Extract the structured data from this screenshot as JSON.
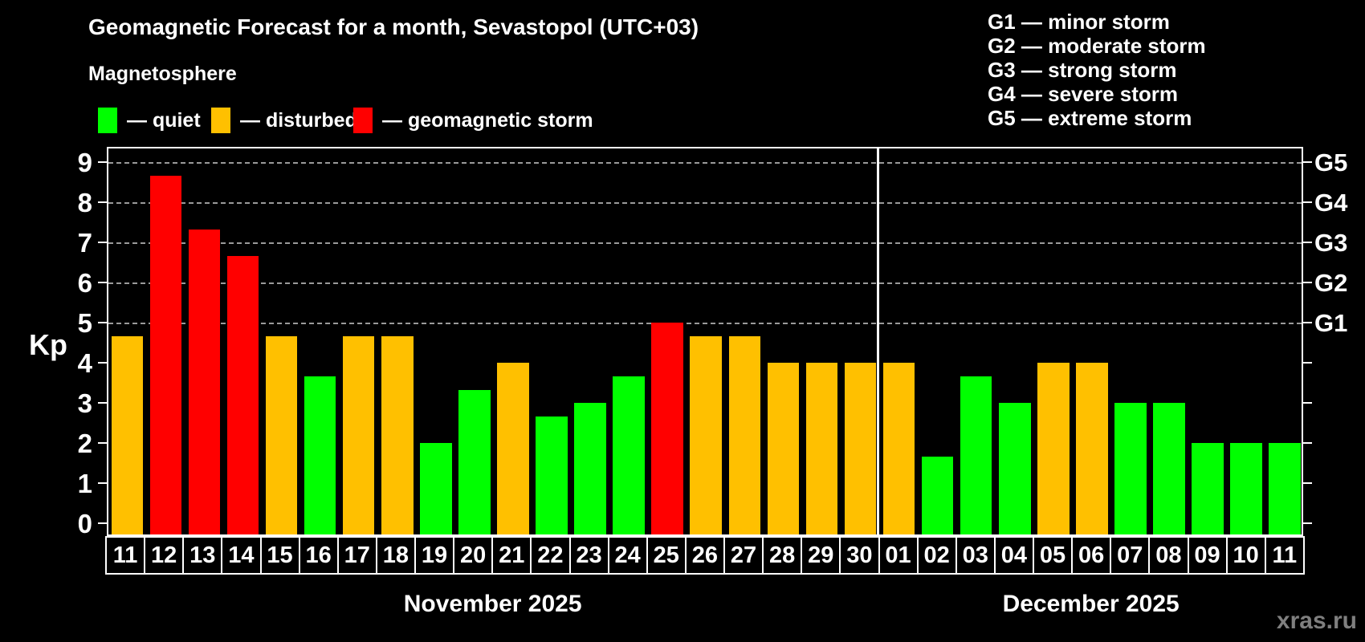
{
  "header": {
    "title": "Geomagnetic Forecast for a month, Sevastopol (UTC+03)",
    "subtitle": "Magnetosphere"
  },
  "legend": {
    "items": [
      {
        "key": "quiet",
        "label": "— quiet",
        "color": "#00ff00"
      },
      {
        "key": "disturbed",
        "label": "— disturbed",
        "color": "#ffc000"
      },
      {
        "key": "storm",
        "label": "— geomagnetic storm",
        "color": "#ff0000"
      }
    ]
  },
  "g_scale_legend": {
    "lines": [
      "G1 — minor storm",
      "G2 — moderate storm",
      "G3 — strong storm",
      "G4 — severe storm",
      "G5 — extreme storm"
    ]
  },
  "chart_data": {
    "type": "bar",
    "title": "Geomagnetic Forecast for a month, Sevastopol (UTC+03)",
    "ylabel": "Kp",
    "ylim": [
      0,
      9
    ],
    "y_ticks": [
      0,
      1,
      2,
      3,
      4,
      5,
      6,
      7,
      8,
      9
    ],
    "gridlines_at_kp": [
      5,
      6,
      7,
      8,
      9
    ],
    "grid": "dashed horizontal at storm levels only",
    "right_axis_labels": [
      {
        "label": "G1",
        "kp": 5
      },
      {
        "label": "G2",
        "kp": 6
      },
      {
        "label": "G3",
        "kp": 7
      },
      {
        "label": "G4",
        "kp": 8
      },
      {
        "label": "G5",
        "kp": 9
      }
    ],
    "months": [
      {
        "label": "November 2025",
        "days": 20
      },
      {
        "label": "December 2025",
        "days": 11
      }
    ],
    "categories": [
      "11",
      "12",
      "13",
      "14",
      "15",
      "16",
      "17",
      "18",
      "19",
      "20",
      "21",
      "22",
      "23",
      "24",
      "25",
      "26",
      "27",
      "28",
      "29",
      "30",
      "01",
      "02",
      "03",
      "04",
      "05",
      "06",
      "07",
      "08",
      "09",
      "10",
      "11"
    ],
    "values": [
      4.67,
      8.67,
      7.33,
      6.67,
      4.67,
      3.67,
      4.67,
      4.67,
      2.0,
      3.33,
      4.0,
      2.67,
      3.0,
      3.67,
      5.0,
      4.67,
      4.67,
      4.0,
      4.0,
      4.0,
      4.0,
      1.67,
      3.67,
      3.0,
      4.0,
      4.0,
      3.0,
      3.0,
      2.0,
      2.0,
      2.0
    ],
    "statuses": [
      "disturbed",
      "storm",
      "storm",
      "storm",
      "disturbed",
      "quiet",
      "disturbed",
      "disturbed",
      "quiet",
      "quiet",
      "disturbed",
      "quiet",
      "quiet",
      "quiet",
      "storm",
      "disturbed",
      "disturbed",
      "disturbed",
      "disturbed",
      "disturbed",
      "disturbed",
      "quiet",
      "quiet",
      "quiet",
      "disturbed",
      "disturbed",
      "quiet",
      "quiet",
      "quiet",
      "quiet",
      "quiet"
    ],
    "status_colors": {
      "quiet": "#00ff00",
      "disturbed": "#ffc000",
      "storm": "#ff0000"
    }
  },
  "watermark": "xras.ru"
}
